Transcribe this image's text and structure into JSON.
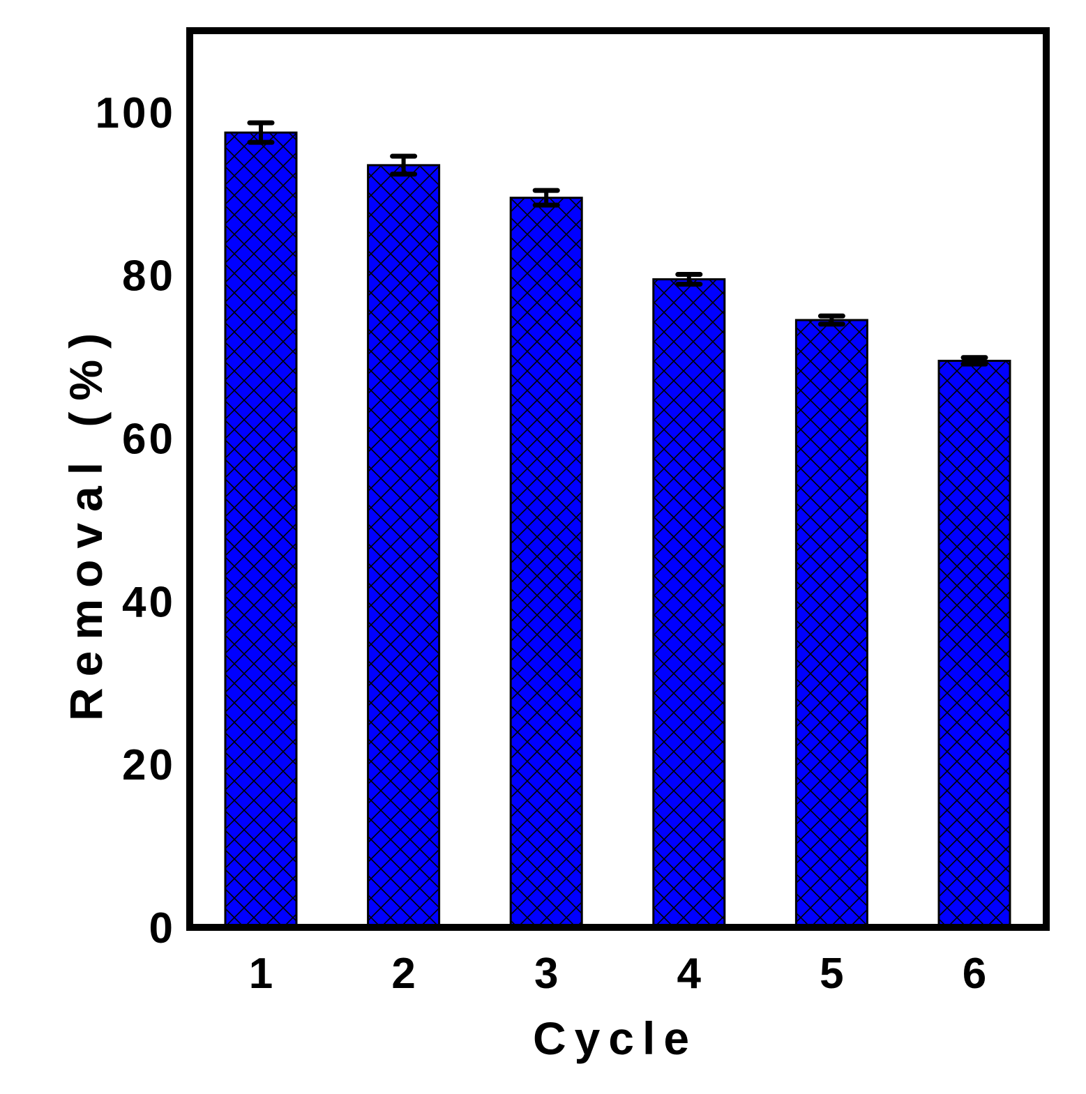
{
  "chart_data": {
    "type": "bar",
    "categories": [
      "1",
      "2",
      "3",
      "4",
      "5",
      "6"
    ],
    "values": [
      97.5,
      93.5,
      89.5,
      79.5,
      74.5,
      69.5
    ],
    "errors": [
      1.2,
      1.1,
      0.9,
      0.6,
      0.5,
      0.4
    ],
    "xlabel": "Cycle",
    "ylabel": "Removal (%)",
    "ylim": [
      0,
      110
    ],
    "yticks": [
      "0",
      "20",
      "40",
      "60",
      "80",
      "100"
    ],
    "grid": false,
    "legend": "none",
    "colors": {
      "bar_fill": "#0000ff",
      "hatch": "#000000",
      "axis": "#000000",
      "error_bar": "#000000"
    },
    "bar_pattern": "crosshatch"
  }
}
